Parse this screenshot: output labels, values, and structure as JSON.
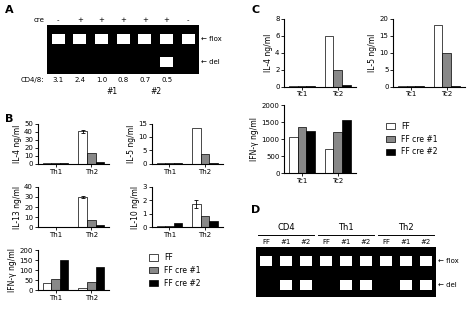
{
  "chart_data": [
    {
      "type": "gel",
      "annotations": [
        {
          "text": "A"
        }
      ],
      "xlabel": "cre",
      "categories": [
        "-",
        "+",
        "+",
        "+",
        "+",
        "+",
        "-"
      ],
      "series": [
        {
          "name": "← flox",
          "values": [
            1,
            1,
            1,
            1,
            1,
            1,
            1
          ]
        },
        {
          "name": "← del",
          "values": [
            0,
            0,
            0,
            0,
            0,
            1,
            0
          ]
        }
      ],
      "lower_label": "CD4/8:",
      "lower_values": [
        "3.1",
        "2.4",
        "1.0",
        "0.8",
        "0.7",
        "0.5"
      ],
      "lane_groups": [
        {
          "label": "#1",
          "first": 1,
          "last": 4
        },
        {
          "label": "#2",
          "first": 4,
          "last": 5
        }
      ]
    },
    {
      "type": "bar",
      "annotations": [
        {
          "text": "B"
        }
      ],
      "ylabel": "IL-4 ng/ml",
      "ylim": [
        0,
        50
      ],
      "yticks": [
        0,
        10,
        20,
        30,
        40,
        50
      ],
      "categories": [
        "Th1",
        "Th2"
      ],
      "series": [
        {
          "name": "FF",
          "color": "white",
          "values": [
            0.5,
            40.5
          ],
          "errors": [
            0,
            2
          ]
        },
        {
          "name": "FF cre #1",
          "color": "#888888",
          "values": [
            0.5,
            13.0
          ],
          "errors": [
            0,
            0
          ]
        },
        {
          "name": "FF cre #2",
          "color": "black",
          "values": [
            0.5,
            2.0
          ],
          "errors": [
            0,
            0
          ]
        }
      ]
    },
    {
      "type": "bar",
      "ylabel": "IL-5 ng/ml",
      "ylim": [
        0,
        15
      ],
      "yticks": [
        0,
        5,
        10,
        15
      ],
      "categories": [
        "Th1",
        "Th2"
      ],
      "series": [
        {
          "name": "FF",
          "color": "white",
          "values": [
            0.2,
            13.5
          ],
          "errors": [
            0,
            0
          ]
        },
        {
          "name": "FF cre #1",
          "color": "#888888",
          "values": [
            0.2,
            3.5
          ],
          "errors": [
            0,
            0
          ]
        },
        {
          "name": "FF cre #2",
          "color": "black",
          "values": [
            0.2,
            0.3
          ],
          "errors": [
            0,
            0
          ]
        }
      ]
    },
    {
      "type": "bar",
      "ylabel": "IL-13 ng/ml",
      "ylim": [
        0,
        40
      ],
      "yticks": [
        0,
        10,
        20,
        30,
        40
      ],
      "categories": [
        "Th1",
        "Th2"
      ],
      "series": [
        {
          "name": "FF",
          "color": "white",
          "values": [
            0.5,
            30.0
          ],
          "errors": [
            0,
            1
          ]
        },
        {
          "name": "FF cre #1",
          "color": "#888888",
          "values": [
            0.5,
            7.5
          ],
          "errors": [
            0,
            0
          ]
        },
        {
          "name": "FF cre #2",
          "color": "black",
          "values": [
            0.5,
            2.0
          ],
          "errors": [
            0,
            0
          ]
        }
      ]
    },
    {
      "type": "bar",
      "ylabel": "IL-10 ng/ml",
      "ylim": [
        0,
        3
      ],
      "yticks": [
        0,
        1,
        2,
        3
      ],
      "categories": [
        "Th1",
        "Th2"
      ],
      "series": [
        {
          "name": "FF",
          "color": "white",
          "values": [
            0.05,
            1.75
          ],
          "errors": [
            0,
            0.3
          ]
        },
        {
          "name": "FF cre #1",
          "color": "#888888",
          "values": [
            0.05,
            0.85
          ],
          "errors": [
            0,
            0
          ]
        },
        {
          "name": "FF cre #2",
          "color": "black",
          "values": [
            0.3,
            0.45
          ],
          "errors": [
            0,
            0
          ]
        }
      ]
    },
    {
      "type": "bar",
      "ylabel": "IFN-γ ng/ml",
      "legend": "center left",
      "ylim": [
        0,
        200
      ],
      "yticks": [
        0,
        50,
        100,
        150,
        200
      ],
      "categories": [
        "Th1",
        "Th2"
      ],
      "series": [
        {
          "name": "FF",
          "color": "white",
          "values": [
            35,
            10
          ],
          "errors": [
            0,
            0
          ]
        },
        {
          "name": "FF cre #1",
          "color": "#888888",
          "values": [
            55,
            40
          ],
          "errors": [
            0,
            0
          ]
        },
        {
          "name": "FF cre #2",
          "color": "black",
          "values": [
            150,
            115
          ],
          "errors": [
            0,
            0
          ]
        }
      ]
    },
    {
      "type": "bar",
      "annotations": [
        {
          "text": "C"
        }
      ],
      "ylabel": "IL-4 ng/ml",
      "ylim": [
        0,
        8
      ],
      "yticks": [
        0,
        2,
        4,
        6,
        8
      ],
      "categories": [
        "Tc1",
        "Tc2"
      ],
      "series": [
        {
          "name": "FF",
          "color": "white",
          "values": [
            0.1,
            6.0
          ],
          "errors": [
            0,
            0
          ]
        },
        {
          "name": "FF cre #1",
          "color": "#888888",
          "values": [
            0.1,
            2.0
          ],
          "errors": [
            0,
            0
          ]
        },
        {
          "name": "FF cre #2",
          "color": "black",
          "values": [
            0.1,
            0.2
          ],
          "errors": [
            0,
            0
          ]
        }
      ]
    },
    {
      "type": "bar",
      "ylabel": "IL-5 ng/ml",
      "ylim": [
        0,
        20
      ],
      "yticks": [
        0,
        5,
        10,
        15,
        20
      ],
      "categories": [
        "Tc1",
        "Tc2"
      ],
      "series": [
        {
          "name": "FF",
          "color": "white",
          "values": [
            0.1,
            18.0
          ],
          "errors": [
            0,
            0
          ]
        },
        {
          "name": "FF cre #1",
          "color": "#888888",
          "values": [
            0.1,
            10.0
          ],
          "errors": [
            0,
            0
          ]
        },
        {
          "name": "FF cre #2",
          "color": "black",
          "values": [
            0.1,
            0.2
          ],
          "errors": [
            0,
            0
          ]
        }
      ]
    },
    {
      "type": "bar",
      "ylabel": "IFN-γ ng/ml",
      "legend": "center left",
      "ylim": [
        0,
        2000
      ],
      "yticks": [
        0,
        500,
        1000,
        1500,
        2000
      ],
      "categories": [
        "Tc1",
        "Tc2"
      ],
      "series": [
        {
          "name": "FF",
          "color": "white",
          "values": [
            1050,
            700
          ],
          "errors": [
            0,
            0
          ]
        },
        {
          "name": "FF cre #1",
          "color": "#888888",
          "values": [
            1350,
            1200
          ],
          "errors": [
            0,
            0
          ]
        },
        {
          "name": "FF cre #2",
          "color": "black",
          "values": [
            1250,
            1570
          ],
          "errors": [
            0,
            0
          ]
        }
      ]
    },
    {
      "type": "gel",
      "annotations": [
        {
          "text": "D"
        }
      ],
      "categories": [
        "FF",
        "#1",
        "#2",
        "FF",
        "#1",
        "#2",
        "FF",
        "#1",
        "#2"
      ],
      "series": [
        {
          "name": "← flox",
          "values": [
            1,
            1,
            1,
            1,
            1,
            1,
            1,
            1,
            1
          ]
        },
        {
          "name": "← del",
          "values": [
            0,
            1,
            1,
            0,
            1,
            1,
            0,
            1,
            1
          ]
        }
      ],
      "lane_groups": [
        {
          "label": "CD4",
          "first": 0,
          "last": 2
        },
        {
          "label": "Th1",
          "first": 3,
          "last": 5
        },
        {
          "label": "Th2",
          "first": 6,
          "last": 8
        }
      ]
    }
  ]
}
